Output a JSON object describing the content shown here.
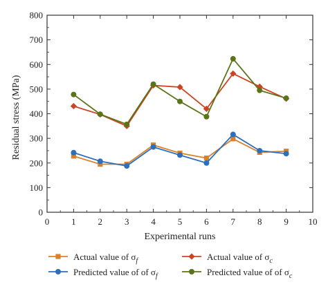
{
  "chart_data": {
    "type": "line",
    "xlabel": "Experimental runs",
    "ylabel": "Residual stress (MPa)",
    "xlim": [
      0,
      10
    ],
    "ylim": [
      0,
      800
    ],
    "xticks": [
      0,
      1,
      2,
      3,
      4,
      5,
      6,
      7,
      8,
      9,
      10
    ],
    "yticks": [
      0,
      100,
      200,
      300,
      400,
      500,
      600,
      700,
      800
    ],
    "x": [
      1,
      2,
      3,
      4,
      5,
      6,
      7,
      8,
      9
    ],
    "grid": false,
    "legend_position": "bottom",
    "series": [
      {
        "name": "Actual value of σf",
        "label_prefix": "Actual value of σ",
        "label_sub": "f",
        "color": "#D9822B",
        "marker": "square",
        "values": [
          228,
          195,
          195,
          273,
          240,
          220,
          298,
          243,
          248
        ]
      },
      {
        "name": "Actual value of σc",
        "label_prefix": "Actual value of σ",
        "label_sub": "c",
        "color": "#CC4421",
        "marker": "diamond",
        "values": [
          431,
          397,
          350,
          515,
          508,
          420,
          563,
          510,
          461
        ]
      },
      {
        "name": "Predicted value of of σf",
        "label_prefix": "Predicted value of of σ",
        "label_sub": "f",
        "color": "#2C6FBF",
        "marker": "circle",
        "values": [
          242,
          207,
          188,
          265,
          232,
          200,
          316,
          250,
          238
        ]
      },
      {
        "name": "Predicted value of of σc",
        "label_prefix": "Predicted value of of σ",
        "label_sub": "c",
        "color": "#5A7417",
        "marker": "circle",
        "values": [
          478,
          398,
          357,
          520,
          450,
          388,
          623,
          495,
          463
        ]
      }
    ]
  }
}
